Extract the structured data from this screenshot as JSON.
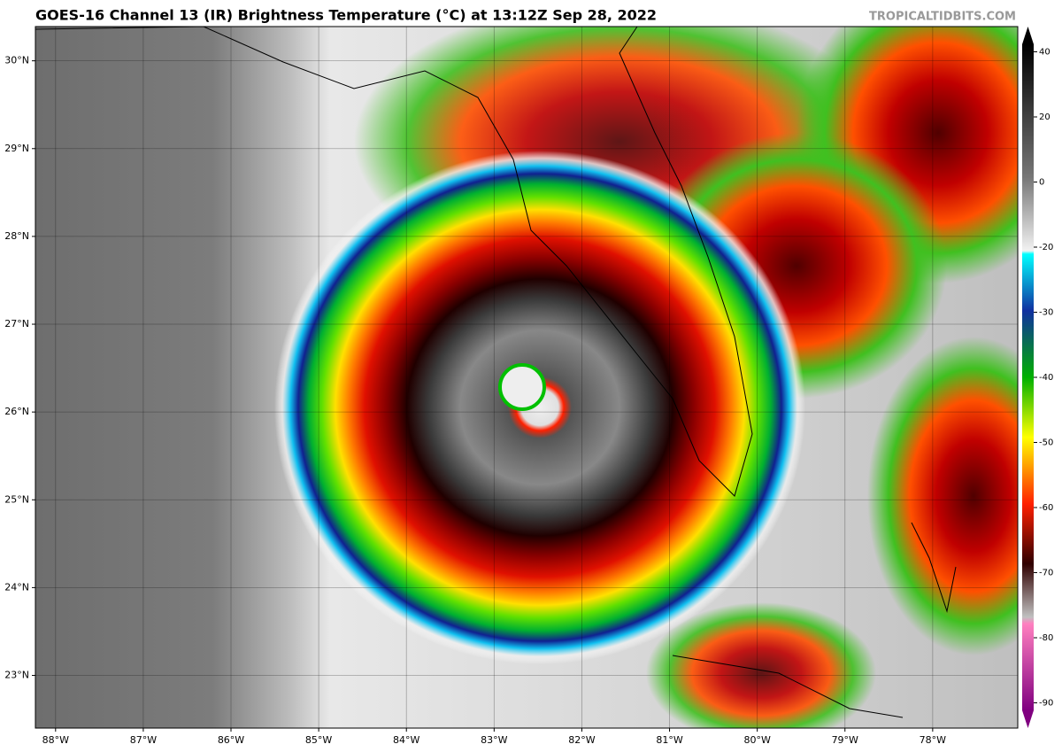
{
  "header": {
    "title": "GOES-16 Channel 13 (IR) Brightness Temperature (°C) at 13:12Z Sep 28, 2022",
    "watermark": "TROPICALTIDBITS.COM"
  },
  "map": {
    "xlim": [
      -88.23,
      -77.03
    ],
    "ylim": [
      22.4,
      30.39
    ],
    "grid": true,
    "xticks": [
      {
        "value": -88,
        "label": "88°W"
      },
      {
        "value": -87,
        "label": "87°W"
      },
      {
        "value": -86,
        "label": "86°W"
      },
      {
        "value": -85,
        "label": "85°W"
      },
      {
        "value": -84,
        "label": "84°W"
      },
      {
        "value": -83,
        "label": "83°W"
      },
      {
        "value": -82,
        "label": "82°W"
      },
      {
        "value": -81,
        "label": "81°W"
      },
      {
        "value": -80,
        "label": "80°W"
      },
      {
        "value": -79,
        "label": "79°W"
      },
      {
        "value": -78,
        "label": "78°W"
      }
    ],
    "yticks": [
      {
        "value": 30,
        "label": "30°N"
      },
      {
        "value": 29,
        "label": "29°N"
      },
      {
        "value": 28,
        "label": "28°N"
      },
      {
        "value": 27,
        "label": "27°N"
      },
      {
        "value": 26,
        "label": "26°N"
      },
      {
        "value": 25,
        "label": "25°N"
      },
      {
        "value": 24,
        "label": "24°N"
      },
      {
        "value": 23,
        "label": "23°N"
      }
    ]
  },
  "colorbar": {
    "ticks": [
      40,
      20,
      0,
      -20,
      -30,
      -40,
      -50,
      -60,
      -70,
      -80,
      -90
    ]
  }
}
